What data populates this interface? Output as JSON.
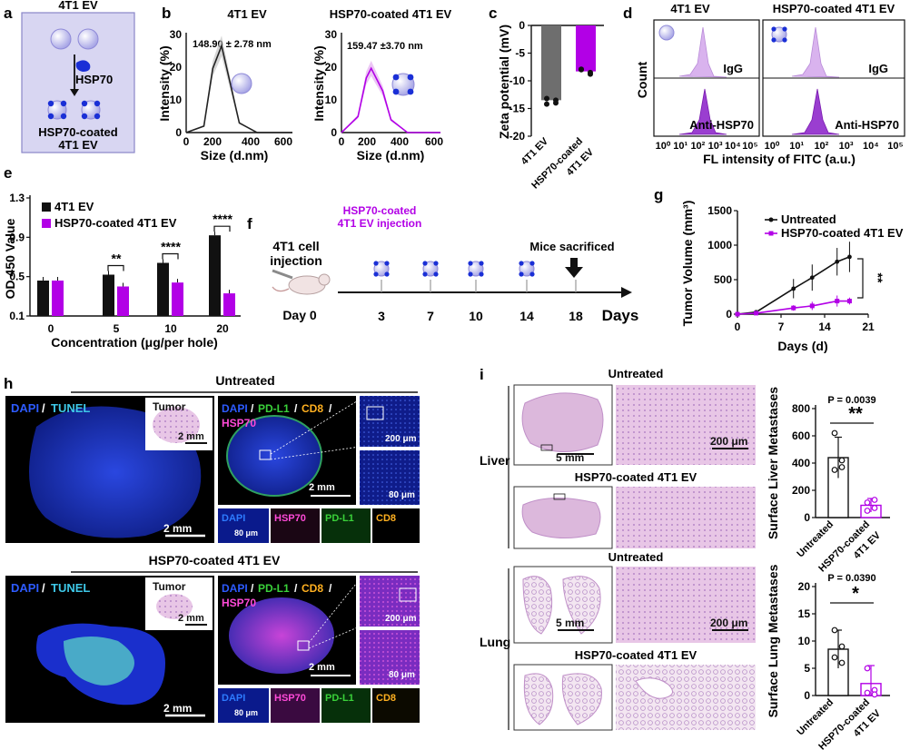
{
  "panels": {
    "a": "a",
    "b": "b",
    "c": "c",
    "d": "d",
    "e": "e",
    "f": "f",
    "g": "g",
    "h": "h",
    "i": "i"
  },
  "a": {
    "top": "4T1 EV",
    "middle": "HSP70",
    "bottom1": "HSP70-coated",
    "bottom2": "4T1 EV"
  },
  "b": {
    "title1": "4T1 EV",
    "title2": "HSP70-coated 4T1 EV",
    "size1": "148.90 ± 2.78 nm",
    "size2": "159.47 ±3.70 nm",
    "xlabel": "Size (d.nm)",
    "ylabel": "Intensity (%)",
    "xticks": [
      "0",
      "200",
      "400",
      "600"
    ],
    "yticks": [
      "0",
      "10",
      "20",
      "30"
    ]
  },
  "c": {
    "ylabel": "Zeta potential (mV)",
    "yticks": [
      "0",
      "-5",
      "-10",
      "-15",
      "-20"
    ],
    "cat1": "4T1 EV",
    "cat2a": "HSP70-coated",
    "cat2b": "4T1 EV"
  },
  "d": {
    "title1": "4T1 EV",
    "title2": "HSP70-coated 4T1 EV",
    "igg": "IgG",
    "anti": "Anti-HSP70",
    "ylabel": "Count",
    "xlabel": "FL intensity of FITC (a.u.)",
    "xticks": [
      "10⁰",
      "10¹",
      "10²",
      "10³",
      "10⁴",
      "10⁵"
    ]
  },
  "e": {
    "ylabel": "OD 450 Value",
    "xlabel": "Concentration (μg/per hole)",
    "legend1": "4T1 EV",
    "legend2": "HSP70-coated 4T1 EV",
    "sig": [
      "**",
      "****",
      "****"
    ]
  },
  "f": {
    "label1": "HSP70-coated",
    "label2": "4T1 EV injection",
    "inject1": "4T1 cell",
    "inject2": "injection",
    "day0": "Day 0",
    "sacrifice": "Mice sacrificed",
    "days": [
      "3",
      "7",
      "10",
      "14",
      "18"
    ],
    "unit": "Days"
  },
  "g": {
    "ylabel": "Tumor Volume (mm³)",
    "xlabel": "Days (d)",
    "legend1": "Untreated",
    "legend2": "HSP70-coated 4T1 EV",
    "sig": "**"
  },
  "h": {
    "untreated": "Untreated",
    "treated": "HSP70-coated 4T1 EV",
    "dapi": "DAPI",
    "tunel": "TUNEL",
    "tumor": "Tumor",
    "pdl1": "PD-L1",
    "cd8": "CD8",
    "hsp70": "HSP70",
    "slash": "/",
    "s2mm": "2 mm",
    "s200": "200 μm",
    "s80": "80 μm"
  },
  "i": {
    "untreated": "Untreated",
    "treated": "HSP70-coated 4T1 EV",
    "liver": "Liver",
    "lung": "Lung",
    "s5mm": "5 mm",
    "s200": "200 μm",
    "p1": "P = 0.0039",
    "p2": "P = 0.0390",
    "sig1": "**",
    "sig2": "*",
    "ylabel1": "Surface Liver Metastases",
    "ylabel2": "Surface Lung Metastases",
    "cat1": "Untreated",
    "cat2a": "HSP70-coated",
    "cat2b": "4T1 EV",
    "yticks1": [
      "0",
      "200",
      "400",
      "600",
      "800"
    ],
    "yticks2": [
      "0",
      "5",
      "10",
      "15",
      "20"
    ]
  },
  "colors": {
    "gray": "#6e6e6e",
    "purple": "#b200e6",
    "light_purple": "#d9b3ee",
    "black": "#111111",
    "dapi_blue": "#1f3de0"
  },
  "chart_data": [
    {
      "type": "line",
      "panel": "b-left",
      "title": "4T1 EV",
      "xlabel": "Size (d.nm)",
      "ylabel": "Intensity (%)",
      "x": [
        0,
        100,
        150,
        200,
        250,
        300,
        400,
        500,
        600
      ],
      "y": [
        0,
        2,
        20,
        27,
        15,
        3,
        0,
        0,
        0
      ],
      "xlim": [
        0,
        600
      ],
      "ylim": [
        0,
        30
      ]
    },
    {
      "type": "line",
      "panel": "b-right",
      "title": "HSP70-coated 4T1 EV",
      "xlabel": "Size (d.nm)",
      "ylabel": "Intensity (%)",
      "x": [
        0,
        100,
        150,
        180,
        250,
        300,
        400,
        500,
        600
      ],
      "y": [
        0,
        5,
        17,
        20,
        13,
        4,
        0,
        0,
        0
      ],
      "xlim": [
        0,
        600
      ],
      "ylim": [
        0,
        30
      ]
    },
    {
      "type": "bar",
      "panel": "c",
      "categories": [
        "4T1 EV",
        "HSP70-coated 4T1 EV"
      ],
      "values": [
        -13.5,
        -8.3
      ],
      "points": [
        [
          -13.2,
          -13.5,
          -14.2,
          -14.0
        ],
        [
          -7.9,
          -8.5,
          -8.0,
          -8.8
        ]
      ],
      "ylabel": "Zeta potential (mV)",
      "ylim": [
        -20,
        0
      ]
    },
    {
      "type": "bar",
      "panel": "e",
      "categories": [
        "0",
        "5",
        "10",
        "20"
      ],
      "series": [
        {
          "name": "4T1 EV",
          "values": [
            0.46,
            0.52,
            0.64,
            0.92
          ]
        },
        {
          "name": "HSP70-coated 4T1 EV",
          "values": [
            0.46,
            0.4,
            0.44,
            0.33
          ]
        }
      ],
      "ylabel": "OD 450 Value",
      "xlabel": "Concentration (μg/per hole)",
      "ylim": [
        0.1,
        1.3
      ],
      "yticks": [
        0.1,
        0.5,
        0.9,
        1.3
      ]
    },
    {
      "type": "line",
      "panel": "g",
      "x": [
        0,
        3,
        9,
        12,
        16,
        18
      ],
      "series": [
        {
          "name": "Untreated",
          "values": [
            0,
            30,
            370,
            530,
            760,
            830
          ],
          "err": [
            0,
            15,
            140,
            190,
            200,
            220
          ]
        },
        {
          "name": "HSP70-coated 4T1 EV",
          "values": [
            0,
            15,
            90,
            120,
            190,
            190
          ],
          "err": [
            0,
            10,
            40,
            60,
            80,
            50
          ]
        }
      ],
      "xlabel": "Days (d)",
      "ylabel": "Tumor Volume (mm³)",
      "xlim": [
        0,
        21
      ],
      "ylim": [
        0,
        1500
      ],
      "xticks": [
        0,
        7,
        14,
        21
      ],
      "yticks": [
        0,
        500,
        1000,
        1500
      ]
    },
    {
      "type": "bar",
      "panel": "i-liver",
      "categories": [
        "Untreated",
        "HSP70-coated 4T1 EV"
      ],
      "values": [
        440,
        90
      ],
      "err": [
        150,
        50
      ],
      "points": [
        [
          620,
          420,
          350,
          370
        ],
        [
          50,
          70,
          110,
          130
        ]
      ],
      "ylabel": "Surface Liver Metastases",
      "ylim": [
        0,
        800
      ]
    },
    {
      "type": "bar",
      "panel": "i-lung",
      "categories": [
        "Untreated",
        "HSP70-coated 4T1 EV"
      ],
      "values": [
        8.5,
        2.2
      ],
      "err": [
        3.5,
        3.3
      ],
      "points": [
        [
          12,
          9,
          7,
          6
        ],
        [
          5,
          1,
          0.5,
          0.2
        ]
      ],
      "ylabel": "Surface Lung Metastases",
      "ylim": [
        0,
        20
      ]
    }
  ]
}
